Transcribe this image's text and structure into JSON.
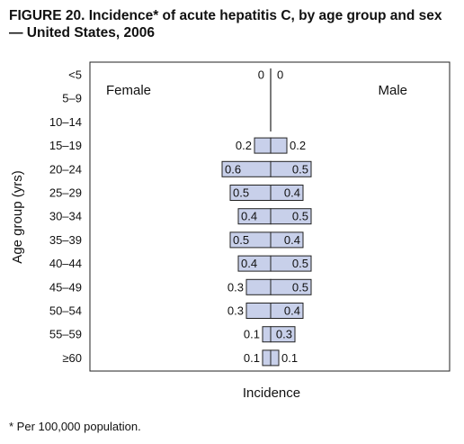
{
  "title": "FIGURE 20. Incidence* of acute hepatitis C, by age group and sex — United States, 2006",
  "footnote": "* Per 100,000 population.",
  "chart_data": {
    "type": "bar",
    "orientation": "horizontal-butterfly",
    "categories": [
      "<5",
      "5–9",
      "10–14",
      "15–19",
      "20–24",
      "25–29",
      "30–34",
      "35–39",
      "40–44",
      "45–49",
      "50–54",
      "55–59",
      "≥60"
    ],
    "series": [
      {
        "name": "Female",
        "values": [
          0,
          0,
          0,
          0.2,
          0.6,
          0.5,
          0.4,
          0.5,
          0.4,
          0.3,
          0.3,
          0.1,
          0.1
        ],
        "labels": [
          "0",
          "",
          "",
          "0.2",
          "0.6",
          "0.5",
          "0.4",
          "0.5",
          "0.4",
          "0.3",
          "0.3",
          "0.1",
          "0.1"
        ]
      },
      {
        "name": "Male",
        "values": [
          0,
          0,
          0,
          0.2,
          0.5,
          0.4,
          0.5,
          0.4,
          0.5,
          0.5,
          0.4,
          0.3,
          0.1
        ],
        "labels": [
          "0",
          "",
          "",
          "0.2",
          "0.5",
          "0.4",
          "0.5",
          "0.4",
          "0.5",
          "0.5",
          "0.4",
          "0.3",
          "0.1"
        ]
      }
    ],
    "xlabel": "Incidence",
    "ylabel": "Age group (yrs)",
    "bar_color": "#c8d0ea",
    "bar_edge_color": "#222222"
  }
}
